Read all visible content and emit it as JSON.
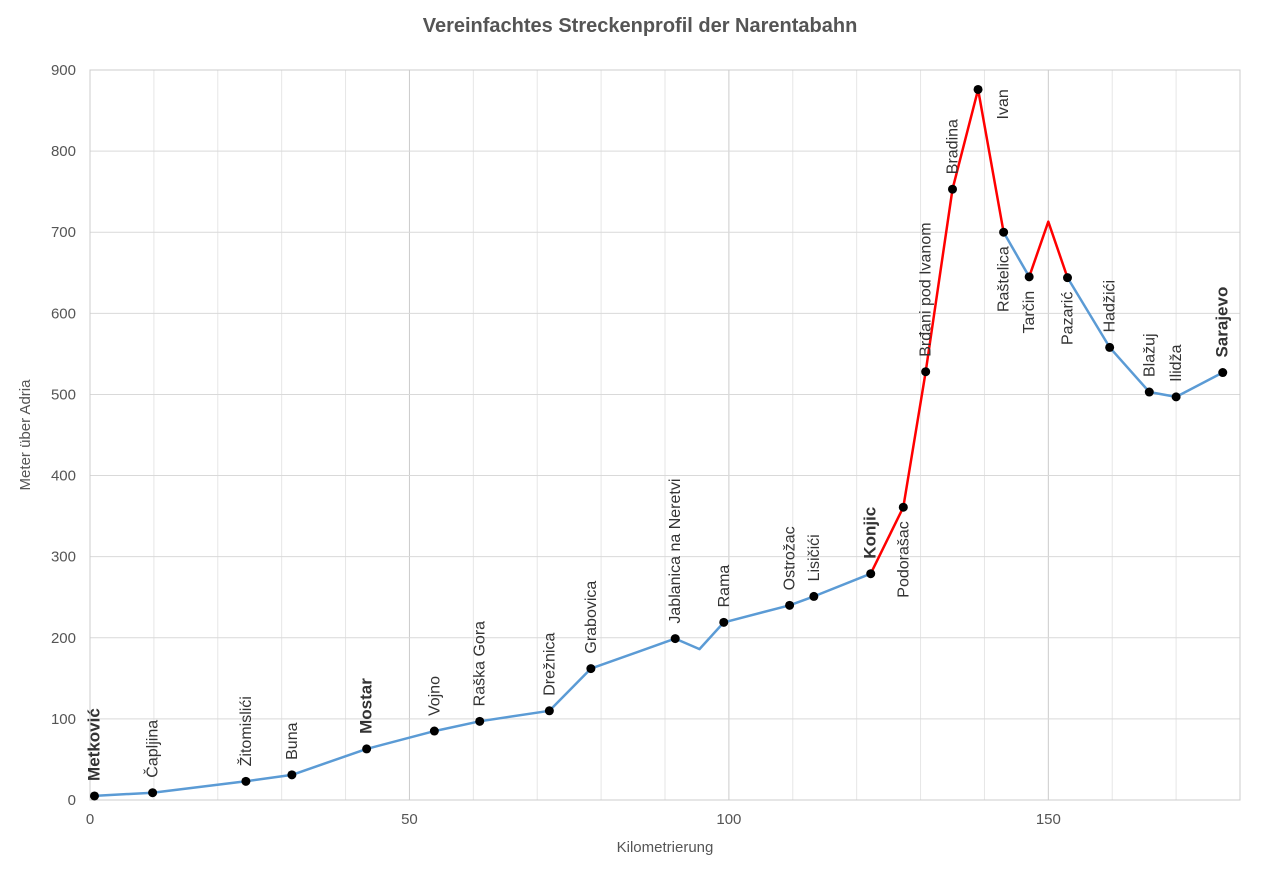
{
  "chart_data": {
    "type": "line",
    "title": "Vereinfachtes Streckenprofil der Narentabahn",
    "xlabel": "Kilometrierung",
    "ylabel": "Meter über Adria",
    "xlim": [
      0,
      180
    ],
    "ylim": [
      0,
      900
    ],
    "xticks": [
      0,
      50,
      100,
      150
    ],
    "yticks": [
      0,
      100,
      200,
      300,
      400,
      500,
      600,
      700,
      800,
      900
    ],
    "grid": true,
    "colors": {
      "adhesion": "#5b9bd5",
      "rack": "#ff0000",
      "marker": "#000000"
    },
    "series": [
      {
        "color": "#5b9bd5",
        "points": [
          [
            0.7,
            5
          ],
          [
            9.8,
            9
          ],
          [
            24.4,
            23
          ],
          [
            31.6,
            31
          ],
          [
            43.3,
            63
          ],
          [
            53.9,
            85
          ],
          [
            61.0,
            97
          ],
          [
            71.9,
            110
          ],
          [
            78.4,
            162
          ],
          [
            91.6,
            199
          ],
          [
            95.4,
            186
          ],
          [
            99.2,
            219
          ],
          [
            109.5,
            240
          ],
          [
            113.3,
            251
          ],
          [
            122.2,
            279
          ]
        ]
      },
      {
        "color": "#ff0000",
        "points": [
          [
            122.2,
            279
          ],
          [
            127.3,
            361
          ],
          [
            130.8,
            528
          ],
          [
            135.0,
            753
          ],
          [
            139.0,
            876
          ],
          [
            143.0,
            700
          ]
        ]
      },
      {
        "color": "#5b9bd5",
        "points": [
          [
            143.0,
            700
          ],
          [
            147.0,
            645
          ]
        ]
      },
      {
        "color": "#ff0000",
        "points": [
          [
            147.0,
            645
          ],
          [
            150.0,
            713
          ],
          [
            153.0,
            644
          ]
        ]
      },
      {
        "color": "#5b9bd5",
        "points": [
          [
            153.0,
            644
          ],
          [
            159.6,
            558
          ],
          [
            165.8,
            503
          ],
          [
            170.0,
            497
          ],
          [
            177.3,
            527
          ]
        ]
      }
    ],
    "stations": [
      {
        "name": "Metković",
        "km": 0.7,
        "elev": 5,
        "bold": true,
        "label_side": "above"
      },
      {
        "name": "Čapljina",
        "km": 9.8,
        "elev": 9,
        "bold": false,
        "label_side": "above"
      },
      {
        "name": "Žitomislići",
        "km": 24.4,
        "elev": 23,
        "bold": false,
        "label_side": "above"
      },
      {
        "name": "Buna",
        "km": 31.6,
        "elev": 31,
        "bold": false,
        "label_side": "above"
      },
      {
        "name": "Mostar",
        "km": 43.3,
        "elev": 63,
        "bold": true,
        "label_side": "above"
      },
      {
        "name": "Vojno",
        "km": 53.9,
        "elev": 85,
        "bold": false,
        "label_side": "above"
      },
      {
        "name": "Raška Gora",
        "km": 61.0,
        "elev": 97,
        "bold": false,
        "label_side": "above"
      },
      {
        "name": "Drežnica",
        "km": 71.9,
        "elev": 110,
        "bold": false,
        "label_side": "above"
      },
      {
        "name": "Grabovica",
        "km": 78.4,
        "elev": 162,
        "bold": false,
        "label_side": "above"
      },
      {
        "name": "Jablanica na Neretvi",
        "km": 91.6,
        "elev": 199,
        "bold": false,
        "label_side": "above"
      },
      {
        "name": "Rama",
        "km": 99.2,
        "elev": 219,
        "bold": false,
        "label_side": "above"
      },
      {
        "name": "Ostrožac",
        "km": 109.5,
        "elev": 240,
        "bold": false,
        "label_side": "above"
      },
      {
        "name": "Lisičići",
        "km": 113.3,
        "elev": 251,
        "bold": false,
        "label_side": "above"
      },
      {
        "name": "Konjic",
        "km": 122.2,
        "elev": 279,
        "bold": true,
        "label_side": "above"
      },
      {
        "name": "Podorašac",
        "km": 127.3,
        "elev": 361,
        "bold": false,
        "label_side": "below"
      },
      {
        "name": "Brđani pod Ivanom",
        "km": 130.8,
        "elev": 528,
        "bold": false,
        "label_side": "above"
      },
      {
        "name": "Bradina",
        "km": 135.0,
        "elev": 753,
        "bold": false,
        "label_side": "above"
      },
      {
        "name": "Ivan",
        "km": 139.0,
        "elev": 876,
        "bold": false,
        "label_side": "right"
      },
      {
        "name": "Raštelica",
        "km": 143.0,
        "elev": 700,
        "bold": false,
        "label_side": "below"
      },
      {
        "name": "Tarčin",
        "km": 147.0,
        "elev": 645,
        "bold": false,
        "label_side": "below"
      },
      {
        "name": "Pazarić",
        "km": 153.0,
        "elev": 644,
        "bold": false,
        "label_side": "below"
      },
      {
        "name": "Hadžići",
        "km": 159.6,
        "elev": 558,
        "bold": false,
        "label_side": "above"
      },
      {
        "name": "Blažuj",
        "km": 165.8,
        "elev": 503,
        "bold": false,
        "label_side": "above"
      },
      {
        "name": "Ilidža",
        "km": 170.0,
        "elev": 497,
        "bold": false,
        "label_side": "above"
      },
      {
        "name": "Sarajevo",
        "km": 177.3,
        "elev": 527,
        "bold": true,
        "label_side": "above"
      }
    ]
  }
}
